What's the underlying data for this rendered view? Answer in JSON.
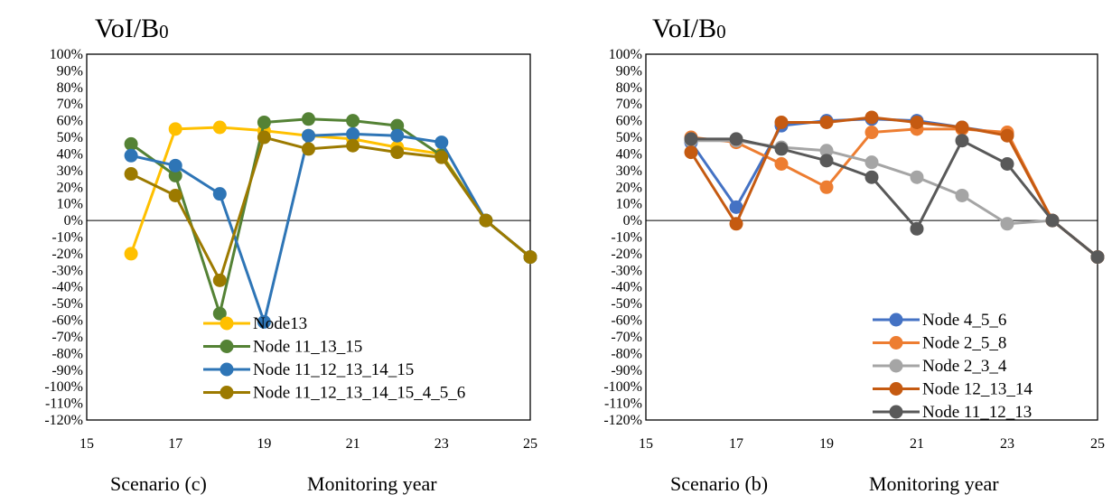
{
  "charts": [
    {
      "id": "c",
      "title_main": "VoI/B",
      "title_sub": "0",
      "scenario_label": "Scenario (c)",
      "xlabel": "Monitoring year",
      "chart_data": {
        "type": "line",
        "xlim": [
          15,
          25
        ],
        "ylim": [
          -120,
          100
        ],
        "xticks": [
          15,
          17,
          19,
          21,
          23,
          25
        ],
        "yticks": [
          -120,
          -110,
          -100,
          -90,
          -80,
          -70,
          -60,
          -50,
          -40,
          -30,
          -20,
          -10,
          0,
          10,
          20,
          30,
          40,
          50,
          60,
          70,
          80,
          90,
          100
        ],
        "y_unit": "%",
        "legend_placement": "bottom-left",
        "series": [
          {
            "name": "Node13",
            "color": "#FFC000",
            "x": [
              16,
              17,
              18,
              19,
              20,
              21,
              22,
              23,
              24,
              25
            ],
            "y": [
              -20,
              55,
              56,
              54,
              51,
              49,
              44,
              40,
              0,
              -22
            ]
          },
          {
            "name": "Node 11_13_15",
            "color": "#548235",
            "x": [
              16,
              17,
              18,
              19,
              20,
              21,
              22,
              23,
              24,
              25
            ],
            "y": [
              46,
              27,
              -56,
              59,
              61,
              60,
              57,
              39,
              0,
              -22
            ]
          },
          {
            "name": "Node 11_12_13_14_15",
            "color": "#2E75B6",
            "x": [
              16,
              17,
              18,
              19,
              20,
              21,
              22,
              23,
              24,
              25
            ],
            "y": [
              39,
              33,
              16,
              -61,
              51,
              52,
              51,
              47,
              0,
              -22
            ]
          },
          {
            "name": "Node 11_12_13_14_15_4_5_6",
            "color": "#9C7A00",
            "x": [
              16,
              17,
              18,
              19,
              20,
              21,
              22,
              23,
              24,
              25
            ],
            "y": [
              28,
              15,
              -36,
              50,
              43,
              45,
              41,
              38,
              0,
              -22
            ]
          }
        ]
      }
    },
    {
      "id": "b",
      "title_main": "VoI/B",
      "title_sub": "0",
      "scenario_label": "Scenario (b)",
      "xlabel": "Monitoring year",
      "chart_data": {
        "type": "line",
        "xlim": [
          15,
          25
        ],
        "ylim": [
          -120,
          100
        ],
        "xticks": [
          15,
          17,
          19,
          21,
          23,
          25
        ],
        "yticks": [
          -120,
          -110,
          -100,
          -90,
          -80,
          -70,
          -60,
          -50,
          -40,
          -30,
          -20,
          -10,
          0,
          10,
          20,
          30,
          40,
          50,
          60,
          70,
          80,
          90,
          100
        ],
        "y_unit": "%",
        "legend_placement": "bottom-right",
        "series": [
          {
            "name": "Node 4_5_6",
            "color": "#4472C4",
            "x": [
              16,
              17,
              18,
              19,
              20,
              21,
              22,
              23,
              24,
              25
            ],
            "y": [
              47,
              8,
              57,
              60,
              61,
              60,
              56,
              52,
              0,
              -22
            ]
          },
          {
            "name": "Node 2_5_8",
            "color": "#ED7D31",
            "x": [
              16,
              17,
              18,
              19,
              20,
              21,
              22,
              23,
              24,
              25
            ],
            "y": [
              50,
              47,
              34,
              20,
              53,
              55,
              55,
              53,
              0,
              -22
            ]
          },
          {
            "name": "Node 2_3_4",
            "color": "#A5A5A5",
            "x": [
              16,
              17,
              18,
              19,
              20,
              21,
              22,
              23,
              24,
              25
            ],
            "y": [
              48,
              48,
              44,
              42,
              35,
              26,
              15,
              -2,
              0,
              -22
            ]
          },
          {
            "name": "Node 12_13_14",
            "color": "#C55A11",
            "x": [
              16,
              17,
              18,
              19,
              20,
              21,
              22,
              23,
              24,
              25
            ],
            "y": [
              41,
              -2,
              59,
              59,
              62,
              59,
              56,
              51,
              0,
              -22
            ]
          },
          {
            "name": "Node 11_12_13",
            "color": "#595959",
            "x": [
              16,
              17,
              18,
              19,
              20,
              21,
              22,
              23,
              24,
              25
            ],
            "y": [
              49,
              49,
              43,
              36,
              26,
              -5,
              48,
              34,
              0,
              -22
            ]
          }
        ]
      }
    }
  ]
}
